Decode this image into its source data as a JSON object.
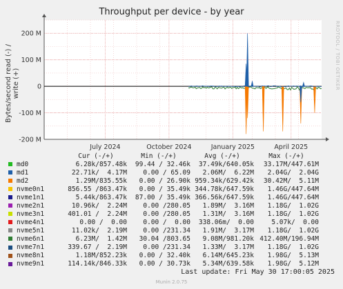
{
  "title": "Throughput per device - by year",
  "ylabel": "Bytes/second read (-) / write (+)",
  "watermark": "RRDTOOL / TOBI OETIKER",
  "chart_data": {
    "type": "line",
    "title": "Throughput per device - by year",
    "ylabel": "Bytes/second read (-) / write (+)",
    "ylim": [
      -200000000,
      250000000
    ],
    "y_ticks": [
      {
        "label": "200 M",
        "value": 200000000
      },
      {
        "label": "100 M",
        "value": 100000000
      },
      {
        "label": "0",
        "value": 0
      },
      {
        "label": "-100 M",
        "value": -100000000
      },
      {
        "label": "-200 M",
        "value": -200000000
      }
    ],
    "x_ticks": [
      {
        "label": "July 2024",
        "value": 0.22
      },
      {
        "label": "October 2024",
        "value": 0.45
      },
      {
        "label": "January 2025",
        "value": 0.68
      },
      {
        "label": "April 2025",
        "value": 0.89
      }
    ],
    "grid": true,
    "legend_placement": "bottom",
    "series": [
      {
        "name": "md2",
        "color": "#f57900",
        "spikes": [
          [
            0.728,
            -180000000
          ],
          [
            0.733,
            -120000000
          ],
          [
            0.79,
            -170000000
          ],
          [
            0.86,
            -170000000
          ],
          [
            0.925,
            -140000000
          ],
          [
            0.975,
            -100000000
          ]
        ]
      },
      {
        "name": "nvme0n1",
        "color": "#1f5fa8",
        "spikes": [
          [
            0.728,
            85000000
          ],
          [
            0.733,
            200000000
          ],
          [
            0.75,
            20000000
          ],
          [
            0.925,
            -60000000
          ],
          [
            0.935,
            15000000
          ]
        ]
      },
      {
        "name": "nvme6n1",
        "color": "#2e7d32",
        "noise": true
      }
    ]
  },
  "legend": {
    "header": {
      "cur": "Cur (-/+)",
      "min": "Min (-/+)",
      "avg": "Avg (-/+)",
      "max": "Max (-/+)"
    },
    "rows": [
      {
        "name": "md0",
        "color": "#22bb22",
        "cur": "6.28k/857.48k",
        "min": "99.44 / 32.46k",
        "avg": "37.49k/640.05k",
        "max": "33.17M/447.61M"
      },
      {
        "name": "md1",
        "color": "#1f5fa8",
        "cur": "22.71k/  4.17M",
        "min": "0.00 / 65.09",
        "avg": "2.06M/  6.22M",
        "max": "2.04G/  2.04G"
      },
      {
        "name": "md2",
        "color": "#f57900",
        "cur": "1.29M/835.55k",
        "min": "0.00 / 26.90k",
        "avg": "959.34k/629.42k",
        "max": "30.42M/  5.11M"
      },
      {
        "name": "nvme0n1",
        "color": "#f5c400",
        "cur": "856.55 /863.47k",
        "min": "0.00 / 35.49k",
        "avg": "344.78k/647.59k",
        "max": "1.46G/447.64M"
      },
      {
        "name": "nvme1n1",
        "color": "#1a1a8c",
        "cur": "5.44k/863.47k",
        "min": "87.00 / 35.49k",
        "avg": "366.56k/647.59k",
        "max": "1.46G/447.64M"
      },
      {
        "name": "nvme2n1",
        "color": "#9b1fb0",
        "cur": "10.96k/  2.24M",
        "min": "0.00 /280.05",
        "avg": "1.89M/  3.16M",
        "max": "1.18G/  1.02G"
      },
      {
        "name": "nvme3n1",
        "color": "#c8e000",
        "cur": "401.01 /  2.24M",
        "min": "0.00 /280.05",
        "avg": "1.31M/  3.16M",
        "max": "1.18G/  1.02G"
      },
      {
        "name": "nvme4n1",
        "color": "#e31a1c",
        "cur": "0.00 /  0.00",
        "min": "0.00 /  0.00",
        "avg": "338.06m/  0.00",
        "max": "5.07k/  0.00"
      },
      {
        "name": "nvme5n1",
        "color": "#888888",
        "cur": "11.02k/  2.19M",
        "min": "0.00 /231.34",
        "avg": "1.91M/  3.17M",
        "max": "1.18G/  1.02G"
      },
      {
        "name": "nvme6n1",
        "color": "#2e7d32",
        "cur": "6.23M/  1.42M",
        "min": "30.04 /803.65",
        "avg": "9.08M/981.20k",
        "max": "412.40M/196.94M"
      },
      {
        "name": "nvme7n1",
        "color": "#1a4d80",
        "cur": "339.67 /  2.19M",
        "min": "0.00 /231.34",
        "avg": "1.33M/  3.17M",
        "max": "1.18G/  1.02G"
      },
      {
        "name": "nvme8n1",
        "color": "#a0521a",
        "cur": "1.18M/852.23k",
        "min": "0.00 / 32.40k",
        "avg": "6.14M/645.23k",
        "max": "1.98G/  5.13M"
      },
      {
        "name": "nvme9n1",
        "color": "#6a1b9a",
        "cur": "114.14k/846.33k",
        "min": "0.00 / 30.73k",
        "avg": "5.34M/639.58k",
        "max": "1.98G/  5.12M"
      }
    ]
  },
  "last_update": "Last update: Fri May 30 17:00:05 2025",
  "munin_version": "Munin 2.0.75"
}
